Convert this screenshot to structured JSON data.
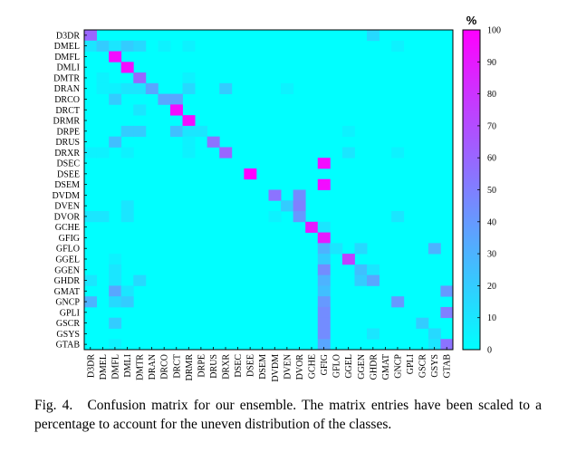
{
  "caption": {
    "label": "Fig. 4.",
    "text": "Confusion matrix for our ensemble. The matrix entries have been scaled to a percentage to account for the uneven distribution of the classes."
  },
  "chart_data": {
    "type": "heatmap",
    "title": "",
    "xlabel": "",
    "ylabel": "",
    "colorbar": {
      "label": "%",
      "ticks": [
        0,
        10,
        20,
        30,
        40,
        50,
        60,
        70,
        80,
        90,
        100
      ],
      "range": [
        0,
        100
      ],
      "colors": {
        "low": "#00ffff",
        "high": "#ff00ff"
      }
    },
    "classes": [
      "D3DR",
      "DMEL",
      "DMFL",
      "DMLI",
      "DMTR",
      "DRAN",
      "DRCO",
      "DRCT",
      "DRMR",
      "DRPE",
      "DRUS",
      "DRXR",
      "DSEC",
      "DSEE",
      "DSEM",
      "DVDM",
      "DVEN",
      "DVOR",
      "GCHE",
      "GFIG",
      "GFLO",
      "GGEL",
      "GGEN",
      "GHDR",
      "GMAT",
      "GNCP",
      "GPLI",
      "GSCR",
      "GSYS",
      "GTAB"
    ],
    "cells": [
      {
        "row": "D3DR",
        "col": "D3DR",
        "value": 60
      },
      {
        "row": "D3DR",
        "col": "GHDR",
        "value": 15
      },
      {
        "row": "DMEL",
        "col": "D3DR",
        "value": 10
      },
      {
        "row": "DMEL",
        "col": "DMEL",
        "value": 20
      },
      {
        "row": "DMEL",
        "col": "DMFL",
        "value": 10
      },
      {
        "row": "DMEL",
        "col": "DMLI",
        "value": 20
      },
      {
        "row": "DMEL",
        "col": "DMTR",
        "value": 15
      },
      {
        "row": "DMEL",
        "col": "DRCO",
        "value": 5
      },
      {
        "row": "DMEL",
        "col": "DRMR",
        "value": 5
      },
      {
        "row": "DMEL",
        "col": "GNCP",
        "value": 5
      },
      {
        "row": "DMFL",
        "col": "DMFL",
        "value": 95
      },
      {
        "row": "DMLI",
        "col": "DMLI",
        "value": 95
      },
      {
        "row": "DMTR",
        "col": "DMEL",
        "value": 5
      },
      {
        "row": "DMTR",
        "col": "DMTR",
        "value": 60
      },
      {
        "row": "DMTR",
        "col": "DRMR",
        "value": 5
      },
      {
        "row": "DRAN",
        "col": "DMEL",
        "value": 5
      },
      {
        "row": "DRAN",
        "col": "DMFL",
        "value": 5
      },
      {
        "row": "DRAN",
        "col": "DMLI",
        "value": 10
      },
      {
        "row": "DRAN",
        "col": "DMTR",
        "value": 10
      },
      {
        "row": "DRAN",
        "col": "DRAN",
        "value": 35
      },
      {
        "row": "DRAN",
        "col": "DRMR",
        "value": 15
      },
      {
        "row": "DRAN",
        "col": "DRXR",
        "value": 20
      },
      {
        "row": "DRAN",
        "col": "DVEN",
        "value": 5
      },
      {
        "row": "DRCO",
        "col": "DMFL",
        "value": 20
      },
      {
        "row": "DRCO",
        "col": "DRCO",
        "value": 35
      },
      {
        "row": "DRCO",
        "col": "DRCT",
        "value": 35
      },
      {
        "row": "DRCT",
        "col": "DMTR",
        "value": 10
      },
      {
        "row": "DRCT",
        "col": "DRCT",
        "value": 95
      },
      {
        "row": "DRMR",
        "col": "DRMR",
        "value": 95
      },
      {
        "row": "DRPE",
        "col": "DMLI",
        "value": 20
      },
      {
        "row": "DRPE",
        "col": "DMTR",
        "value": 20
      },
      {
        "row": "DRPE",
        "col": "DRCT",
        "value": 25
      },
      {
        "row": "DRPE",
        "col": "DRMR",
        "value": 10
      },
      {
        "row": "DRPE",
        "col": "DRPE",
        "value": 10
      },
      {
        "row": "DRPE",
        "col": "GGEL",
        "value": 5
      },
      {
        "row": "DRUS",
        "col": "DMFL",
        "value": 25
      },
      {
        "row": "DRUS",
        "col": "DRMR",
        "value": 5
      },
      {
        "row": "DRUS",
        "col": "DRUS",
        "value": 55
      },
      {
        "row": "DRXR",
        "col": "D3DR",
        "value": 5
      },
      {
        "row": "DRXR",
        "col": "DMEL",
        "value": 5
      },
      {
        "row": "DRXR",
        "col": "DMLI",
        "value": 5
      },
      {
        "row": "DRXR",
        "col": "DRMR",
        "value": 5
      },
      {
        "row": "DRXR",
        "col": "DRXR",
        "value": 60
      },
      {
        "row": "DRXR",
        "col": "GGEL",
        "value": 10
      },
      {
        "row": "DRXR",
        "col": "GNCP",
        "value": 5
      },
      {
        "row": "DSEC",
        "col": "GFIG",
        "value": 95
      },
      {
        "row": "DSEE",
        "col": "DSEE",
        "value": 100
      },
      {
        "row": "DSEM",
        "col": "GFIG",
        "value": 95
      },
      {
        "row": "DVDM",
        "col": "DVDM",
        "value": 55
      },
      {
        "row": "DVDM",
        "col": "DVOR",
        "value": 45
      },
      {
        "row": "DVEN",
        "col": "DMLI",
        "value": 10
      },
      {
        "row": "DVEN",
        "col": "DVEN",
        "value": 20
      },
      {
        "row": "DVEN",
        "col": "DVOR",
        "value": 50
      },
      {
        "row": "DVOR",
        "col": "D3DR",
        "value": 10
      },
      {
        "row": "DVOR",
        "col": "DMEL",
        "value": 10
      },
      {
        "row": "DVOR",
        "col": "DMLI",
        "value": 10
      },
      {
        "row": "DVOR",
        "col": "DVDM",
        "value": 5
      },
      {
        "row": "DVOR",
        "col": "DVOR",
        "value": 40
      },
      {
        "row": "DVOR",
        "col": "GNCP",
        "value": 10
      },
      {
        "row": "GCHE",
        "col": "GCHE",
        "value": 90
      },
      {
        "row": "GCHE",
        "col": "GFIG",
        "value": 10
      },
      {
        "row": "GFIG",
        "col": "GFIG",
        "value": 90
      },
      {
        "row": "GFLO",
        "col": "GFIG",
        "value": 30
      },
      {
        "row": "GFLO",
        "col": "GFLO",
        "value": 10
      },
      {
        "row": "GFLO",
        "col": "GGEN",
        "value": 15
      },
      {
        "row": "GFLO",
        "col": "GSYS",
        "value": 30
      },
      {
        "row": "GGEL",
        "col": "DMFL",
        "value": 5
      },
      {
        "row": "GGEL",
        "col": "GFIG",
        "value": 20
      },
      {
        "row": "GGEL",
        "col": "GGEL",
        "value": 75
      },
      {
        "row": "GGEN",
        "col": "DMFL",
        "value": 10
      },
      {
        "row": "GGEN",
        "col": "GFIG",
        "value": 45
      },
      {
        "row": "GGEN",
        "col": "GGEN",
        "value": 25
      },
      {
        "row": "GGEN",
        "col": "GHDR",
        "value": 10
      },
      {
        "row": "GHDR",
        "col": "D3DR",
        "value": 10
      },
      {
        "row": "GHDR",
        "col": "DMFL",
        "value": 10
      },
      {
        "row": "GHDR",
        "col": "DMTR",
        "value": 15
      },
      {
        "row": "GHDR",
        "col": "GFIG",
        "value": 30
      },
      {
        "row": "GHDR",
        "col": "GGEN",
        "value": 20
      },
      {
        "row": "GHDR",
        "col": "GHDR",
        "value": 35
      },
      {
        "row": "GMAT",
        "col": "DMFL",
        "value": 35
      },
      {
        "row": "GMAT",
        "col": "DMLI",
        "value": 10
      },
      {
        "row": "GMAT",
        "col": "GFIG",
        "value": 25
      },
      {
        "row": "GMAT",
        "col": "GTAB",
        "value": 40
      },
      {
        "row": "GNCP",
        "col": "D3DR",
        "value": 30
      },
      {
        "row": "GNCP",
        "col": "DMFL",
        "value": 15
      },
      {
        "row": "GNCP",
        "col": "DMLI",
        "value": 20
      },
      {
        "row": "GNCP",
        "col": "GFIG",
        "value": 40
      },
      {
        "row": "GNCP",
        "col": "GNCP",
        "value": 40
      },
      {
        "row": "GPLI",
        "col": "GFIG",
        "value": 45
      },
      {
        "row": "GPLI",
        "col": "GTAB",
        "value": 50
      },
      {
        "row": "GSCR",
        "col": "DMFL",
        "value": 20
      },
      {
        "row": "GSCR",
        "col": "GFIG",
        "value": 45
      },
      {
        "row": "GSCR",
        "col": "GSCR",
        "value": 20
      },
      {
        "row": "GSYS",
        "col": "GFIG",
        "value": 45
      },
      {
        "row": "GSYS",
        "col": "GHDR",
        "value": 10
      },
      {
        "row": "GSYS",
        "col": "GSYS",
        "value": 15
      },
      {
        "row": "GTAB",
        "col": "DMFL",
        "value": 5
      },
      {
        "row": "GTAB",
        "col": "GFIG",
        "value": 35
      },
      {
        "row": "GTAB",
        "col": "GSYS",
        "value": 10
      },
      {
        "row": "GTAB",
        "col": "GTAB",
        "value": 55
      }
    ]
  }
}
